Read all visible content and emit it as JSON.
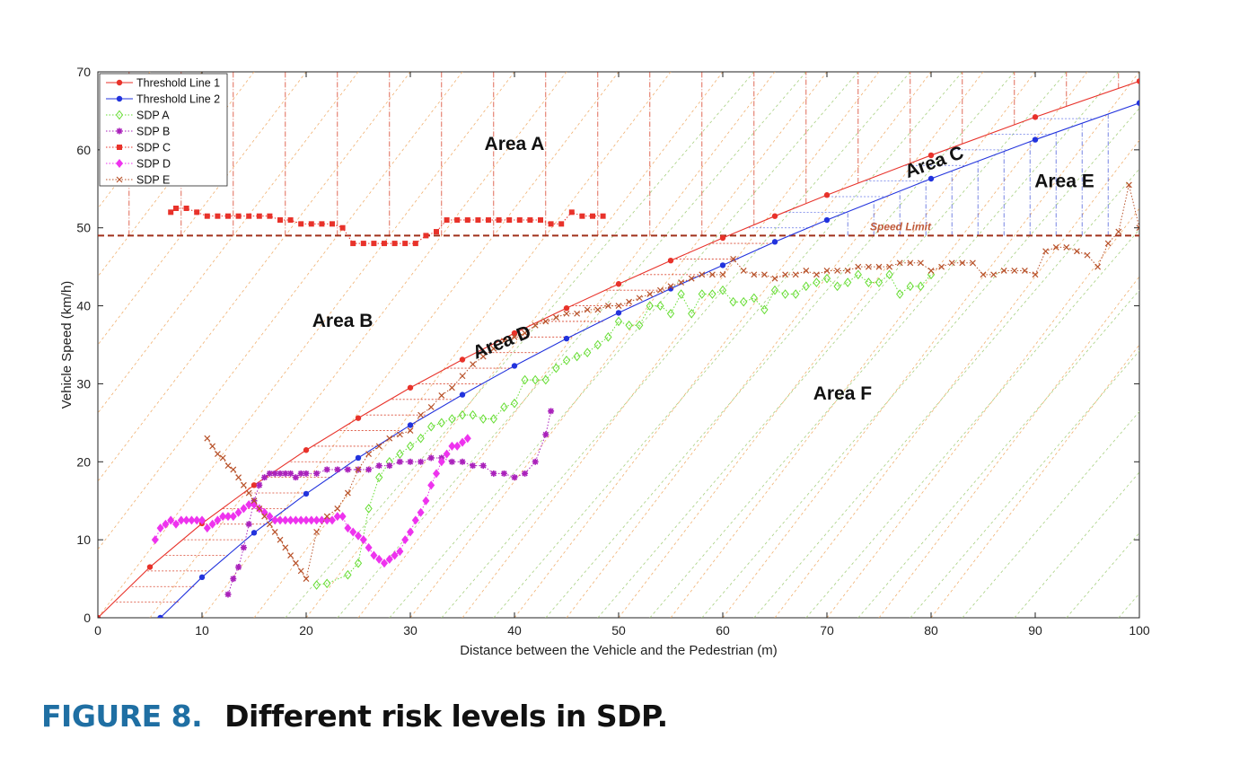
{
  "caption": {
    "figure_label": "FIGURE 8.",
    "text": "Different risk levels in SDP."
  },
  "chart_data": {
    "type": "line",
    "title": "",
    "xlabel": "Distance between the Vehicle and the Pedestrian  (m)",
    "ylabel": "Vehicle Speed (km/h)",
    "xlim": [
      0,
      100
    ],
    "ylim": [
      0,
      70
    ],
    "xticks": [
      0,
      10,
      20,
      30,
      40,
      50,
      60,
      70,
      80,
      90,
      100
    ],
    "yticks": [
      0,
      10,
      20,
      30,
      40,
      50,
      60,
      70
    ],
    "legend_position": "top-left",
    "speed_limit": {
      "label": "Speed Limit",
      "value": 49,
      "color": "#a0301a"
    },
    "areas": [
      {
        "label": "Area A",
        "x": 40,
        "y": 60
      },
      {
        "label": "Area B",
        "x": 23.5,
        "y": 37.3
      },
      {
        "label": "Area C",
        "x": 80.5,
        "y": 57.7,
        "rotate": -20
      },
      {
        "label": "Area D",
        "x": 39,
        "y": 34.6,
        "rotate": -22
      },
      {
        "label": "Area E",
        "x": 92.8,
        "y": 55.2
      },
      {
        "label": "Area F",
        "x": 71.5,
        "y": 28
      }
    ],
    "series": [
      {
        "name": "Threshold Line 1",
        "color": "#e8322a",
        "line": "solid",
        "marker": "dot",
        "x": [
          0,
          5,
          10,
          15,
          20,
          25,
          30,
          35,
          40,
          45,
          50,
          55,
          60,
          65,
          70,
          80,
          90,
          100
        ],
        "y": [
          0,
          6.5,
          12.1,
          17,
          21.5,
          25.6,
          29.5,
          33.1,
          36.5,
          39.7,
          42.8,
          45.8,
          48.7,
          51.5,
          54.2,
          59.3,
          64.2,
          68.8
        ]
      },
      {
        "name": "Threshold Line 2",
        "color": "#2233dd",
        "line": "solid",
        "marker": "dot",
        "x": [
          6,
          10,
          15,
          20,
          25,
          30,
          35,
          40,
          45,
          50,
          55,
          60,
          65,
          70,
          80,
          90,
          100
        ],
        "y": [
          0,
          5.2,
          10.9,
          15.9,
          20.5,
          24.7,
          28.6,
          32.3,
          35.8,
          39.1,
          42.2,
          45.2,
          48.2,
          51,
          56.3,
          61.3,
          66
        ]
      },
      {
        "name": "SDP A",
        "color": "#66dd33",
        "line": "dotted",
        "marker": "diamond-open",
        "x": [
          21,
          22,
          24,
          25,
          26,
          27,
          28,
          29,
          30,
          31,
          32,
          33,
          34,
          35,
          36,
          37,
          38,
          39,
          40,
          41,
          42,
          43,
          44,
          45,
          46,
          47,
          48,
          49,
          50,
          51,
          52,
          53,
          54,
          55,
          56,
          57,
          58,
          59,
          60,
          61,
          62,
          63,
          64,
          65,
          66,
          67,
          68,
          69,
          70,
          71,
          72,
          73,
          74,
          75,
          76,
          77,
          78,
          79,
          80
        ],
        "y": [
          4.2,
          4.4,
          5.5,
          7,
          14,
          18,
          20,
          21,
          22,
          23,
          24.5,
          25,
          25.5,
          26,
          26,
          25.5,
          25.5,
          27,
          27.5,
          30.5,
          30.5,
          30.5,
          32,
          33,
          33.5,
          34,
          35,
          36,
          38,
          37.5,
          37.5,
          40,
          40,
          39,
          41.5,
          39,
          41.5,
          41.5,
          42,
          40.5,
          40.5,
          41,
          39.5,
          42,
          41.5,
          41.5,
          42.5,
          43,
          43.5,
          42.5,
          43,
          44,
          43,
          43,
          44,
          41.5,
          42.5,
          42.5,
          44
        ]
      },
      {
        "name": "SDP B",
        "color": "#aa22bb",
        "line": "dotted",
        "marker": "star",
        "x": [
          12.5,
          13,
          13.5,
          14,
          14.5,
          15,
          15.5,
          16,
          16.5,
          17,
          17.5,
          18,
          18.5,
          19,
          19.5,
          20,
          21,
          22,
          23,
          24,
          25,
          26,
          27,
          28,
          29,
          30,
          31,
          32,
          33,
          34,
          35,
          36,
          37,
          38,
          39,
          40,
          41,
          42,
          43,
          43.5
        ],
        "y": [
          3,
          5,
          6.5,
          9,
          12,
          15,
          17,
          18,
          18.5,
          18.5,
          18.5,
          18.5,
          18.5,
          18,
          18.5,
          18.5,
          18.5,
          19,
          19,
          19,
          19,
          19,
          19.5,
          19.5,
          20,
          20,
          20,
          20.5,
          20.5,
          20,
          20,
          19.5,
          19.5,
          18.5,
          18.5,
          18,
          18.5,
          20,
          23.5,
          26.5
        ]
      },
      {
        "name": "SDP C",
        "color": "#e8322a",
        "line": "dotted",
        "marker": "square",
        "x": [
          7,
          7.5,
          8.5,
          9.5,
          10.5,
          11.5,
          12.5,
          13.5,
          14.5,
          15.5,
          16.5,
          17.5,
          18.5,
          19.5,
          20.5,
          21.5,
          22.5,
          23.5,
          24.5,
          25.5,
          26.5,
          27.5,
          28.5,
          29.5,
          30.5,
          31.5,
          32.5,
          33.5,
          34.5,
          35.5,
          36.5,
          37.5,
          38.5,
          39.5,
          40.5,
          41.5,
          42.5,
          43.5,
          44.5,
          45.5,
          46.5,
          47.5,
          48.5
        ],
        "y": [
          52,
          52.5,
          52.5,
          52,
          51.5,
          51.5,
          51.5,
          51.5,
          51.5,
          51.5,
          51.5,
          51,
          51,
          50.5,
          50.5,
          50.5,
          50.5,
          50,
          48,
          48,
          48,
          48,
          48,
          48,
          48,
          49,
          49.5,
          51,
          51,
          51,
          51,
          51,
          51,
          51,
          51,
          51,
          51,
          50.5,
          50.5,
          52,
          51.5,
          51.5,
          51.5
        ]
      },
      {
        "name": "SDP D",
        "color": "#ee33ee",
        "line": "dotted",
        "marker": "diamond",
        "x": [
          5.5,
          6,
          6.5,
          7,
          7.5,
          8,
          8.5,
          9,
          9.5,
          10,
          10.5,
          11,
          11.5,
          12,
          12.5,
          13,
          13.5,
          14,
          14.5,
          15,
          15.5,
          16,
          16.5,
          17,
          17.5,
          18,
          18.5,
          19,
          19.5,
          20,
          20.5,
          21,
          21.5,
          22,
          22.5,
          23,
          23.5,
          24,
          24.5,
          25,
          25.5,
          26,
          26.5,
          27,
          27.5,
          28,
          28.5,
          29,
          29.5,
          30,
          30.5,
          31,
          31.5,
          32,
          32.5,
          33,
          33.5,
          34,
          34.5,
          35,
          35.5
        ],
        "y": [
          10,
          11.5,
          12,
          12.5,
          12,
          12.5,
          12.5,
          12.5,
          12.5,
          12.5,
          11.5,
          12,
          12.5,
          13,
          13,
          13,
          13.5,
          14,
          14.5,
          14.5,
          14,
          13.5,
          13,
          12.5,
          12.5,
          12.5,
          12.5,
          12.5,
          12.5,
          12.5,
          12.5,
          12.5,
          12.5,
          12.5,
          12.5,
          13,
          13,
          11.5,
          11,
          10.5,
          10,
          9,
          8,
          7.5,
          7,
          7.5,
          8,
          8.5,
          10,
          11,
          12.5,
          13.5,
          15,
          17,
          18.5,
          20,
          21,
          22,
          22,
          22.5,
          23
        ]
      },
      {
        "name": "SDP E",
        "color": "#b8522a",
        "line": "dotted",
        "marker": "x",
        "x": [
          10.5,
          11,
          11.5,
          12,
          12.5,
          13,
          13.5,
          14,
          14.5,
          15,
          15.5,
          16,
          16.5,
          17,
          17.5,
          18,
          18.5,
          19,
          19.5,
          20,
          21,
          22,
          23,
          24,
          25,
          26,
          27,
          28,
          29,
          30,
          31,
          32,
          33,
          34,
          35,
          36,
          37,
          38,
          39,
          40,
          41,
          42,
          43,
          44,
          45,
          46,
          47,
          48,
          49,
          50,
          51,
          52,
          53,
          54,
          55,
          56,
          57,
          58,
          59,
          60,
          61,
          62,
          63,
          64,
          65,
          66,
          67,
          68,
          69,
          70,
          71,
          72,
          73,
          74,
          75,
          76,
          77,
          78,
          79,
          80,
          81,
          82,
          83,
          84,
          85,
          86,
          87,
          88,
          89,
          90,
          91,
          92,
          93,
          94,
          95,
          96,
          97,
          98,
          99,
          100
        ],
        "y": [
          23,
          22,
          21,
          20.5,
          19.5,
          19,
          18,
          17,
          16,
          15,
          14,
          13,
          12,
          11,
          10,
          9,
          8,
          7,
          6,
          5,
          11,
          13,
          14,
          16,
          19,
          21,
          22,
          23,
          23.5,
          24,
          26,
          27,
          28.5,
          29.5,
          31,
          32.5,
          33.5,
          34.5,
          35.5,
          36,
          36.5,
          37.5,
          38,
          38.5,
          39,
          39,
          39.5,
          39.5,
          40,
          40,
          40.5,
          41,
          41.5,
          42,
          42.5,
          43,
          43.5,
          44,
          44,
          44,
          46,
          44.5,
          44,
          44,
          43.5,
          44,
          44,
          44.5,
          44,
          44.5,
          44.5,
          44.5,
          45,
          45,
          45,
          45,
          45.5,
          45.5,
          45.5,
          44.5,
          45,
          45.5,
          45.5,
          45.5,
          44,
          44,
          44.5,
          44.5,
          44.5,
          44,
          47,
          47.5,
          47.5,
          47,
          46.5,
          45,
          48,
          49.5,
          55.5,
          50
        ]
      }
    ]
  }
}
